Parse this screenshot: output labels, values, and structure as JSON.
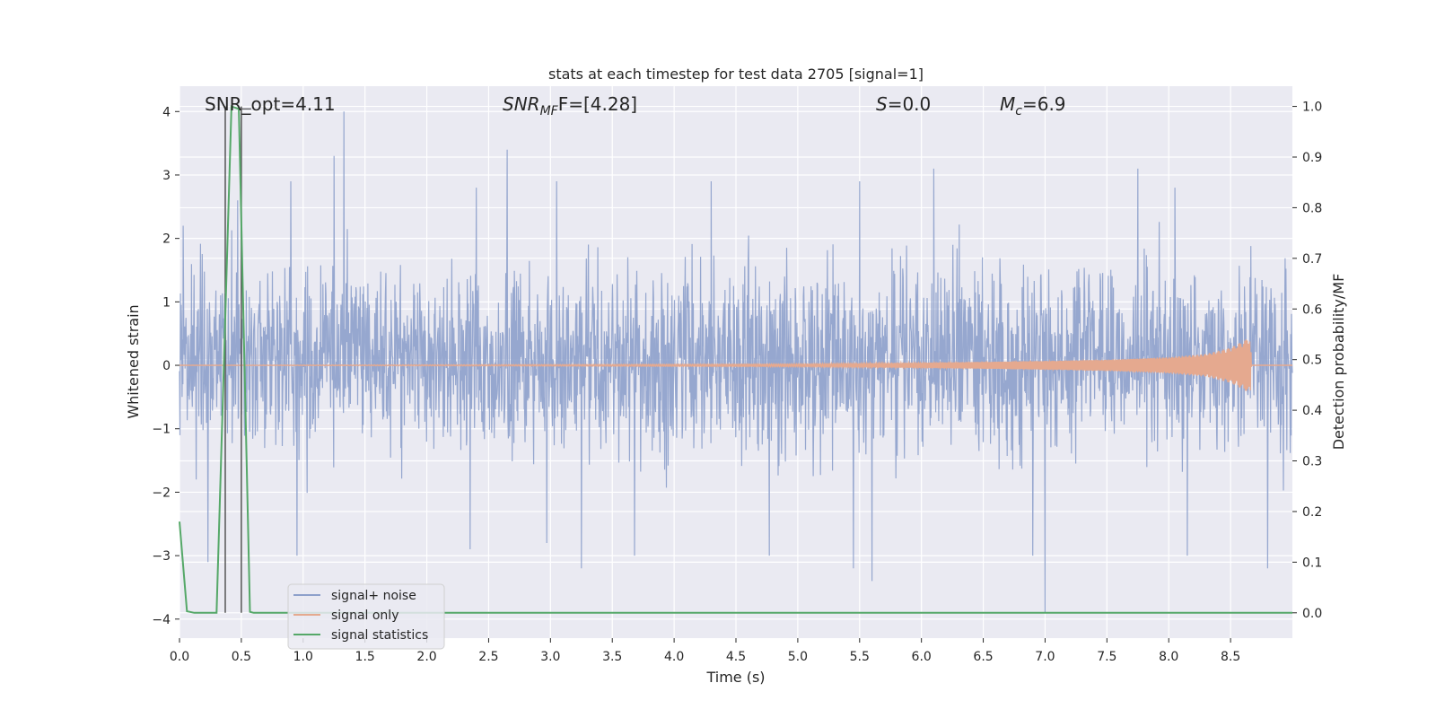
{
  "chart_data": {
    "type": "line",
    "title": "stats at each timestep for test data 2705 [signal=1]",
    "xlabel": "Time (s)",
    "ylabel": "Whitened strain",
    "ylabel_right": "Detection probability/MF",
    "xlim": [
      0.0,
      9.0
    ],
    "ylim": [
      -4.3,
      4.4
    ],
    "ylim_right": [
      -0.05,
      1.04
    ],
    "x_ticks": [
      "0.0",
      "0.5",
      "1.0",
      "1.5",
      "2.0",
      "2.5",
      "3.0",
      "3.5",
      "4.0",
      "4.5",
      "5.0",
      "5.5",
      "6.0",
      "6.5",
      "7.0",
      "7.5",
      "8.0",
      "8.5"
    ],
    "x_tick_values": [
      0.0,
      0.5,
      1.0,
      1.5,
      2.0,
      2.5,
      3.0,
      3.5,
      4.0,
      4.5,
      5.0,
      5.5,
      6.0,
      6.5,
      7.0,
      7.5,
      8.0,
      8.5
    ],
    "y_ticks": [
      "4",
      "3",
      "2",
      "1",
      "0",
      "−1",
      "−2",
      "−3",
      "−4"
    ],
    "y_tick_values": [
      4,
      3,
      2,
      1,
      0,
      -1,
      -2,
      -3,
      -4
    ],
    "y_right_ticks": [
      "1.0",
      "0.9",
      "0.8",
      "0.7",
      "0.6",
      "0.5",
      "0.4",
      "0.3",
      "0.2",
      "0.1",
      "0.0"
    ],
    "y_right_tick_values": [
      1.0,
      0.9,
      0.8,
      0.7,
      0.6,
      0.5,
      0.4,
      0.3,
      0.2,
      0.1,
      0.0
    ],
    "grid": true,
    "legend_position": "lower-left",
    "annotations": {
      "snr_opt": "SNR_opt=4.11",
      "snr_mf_main": "SNR",
      "snr_mf_sub": "MF",
      "snr_mf_rest": "F=[4.28]",
      "s_main": "S",
      "s_rest": "=0.0",
      "mc_main": "M",
      "mc_sub": "c",
      "mc_rest": "=6.9"
    },
    "vlines_x": [
      0.37,
      0.5
    ],
    "series": [
      {
        "name": "signal+ noise",
        "color": "#8da0cb",
        "note_values": "noise band approximately -1.5..1.7 with peaks",
        "peaks": [
          [
            0.03,
            2.2
          ],
          [
            0.23,
            2.7
          ],
          [
            0.47,
            2.6
          ],
          [
            0.9,
            2.9
          ],
          [
            1.25,
            3.3
          ],
          [
            1.33,
            4.0
          ],
          [
            2.4,
            2.8
          ],
          [
            2.65,
            3.4
          ],
          [
            3.05,
            2.9
          ],
          [
            4.3,
            2.9
          ],
          [
            4.77,
            3.5
          ],
          [
            5.5,
            2.9
          ],
          [
            6.1,
            3.1
          ],
          [
            7.75,
            3.1
          ],
          [
            8.05,
            2.8
          ],
          [
            8.8,
            2.9
          ]
        ],
        "troughs": [
          [
            0.23,
            -3.1
          ],
          [
            0.95,
            -3.0
          ],
          [
            2.35,
            -2.9
          ],
          [
            2.97,
            -2.8
          ],
          [
            3.25,
            -3.2
          ],
          [
            3.68,
            -3.0
          ],
          [
            4.77,
            -3.0
          ],
          [
            5.45,
            -3.2
          ],
          [
            5.6,
            -3.4
          ],
          [
            6.9,
            -3.0
          ],
          [
            7.0,
            -3.9
          ],
          [
            8.15,
            -3.0
          ],
          [
            8.8,
            -3.2
          ]
        ]
      },
      {
        "name": "signal only",
        "color": "#e5a98f",
        "x": [
          0.0,
          5.0,
          6.0,
          7.0,
          7.5,
          8.0,
          8.3,
          8.5,
          8.6,
          8.66,
          8.67
        ],
        "amplitude": [
          0.0,
          0.02,
          0.04,
          0.07,
          0.09,
          0.13,
          0.18,
          0.28,
          0.38,
          0.45,
          0.0
        ]
      },
      {
        "name": "signal statistics",
        "color": "#55a868",
        "axis": "right",
        "x": [
          0.0,
          0.06,
          0.12,
          0.3,
          0.42,
          0.48,
          0.57,
          0.6,
          0.62,
          1.0,
          9.0
        ],
        "values": [
          0.18,
          0.003,
          0.0,
          0.0,
          1.0,
          0.995,
          0.002,
          0.0,
          0.0,
          0.0,
          0.0
        ]
      }
    ]
  }
}
